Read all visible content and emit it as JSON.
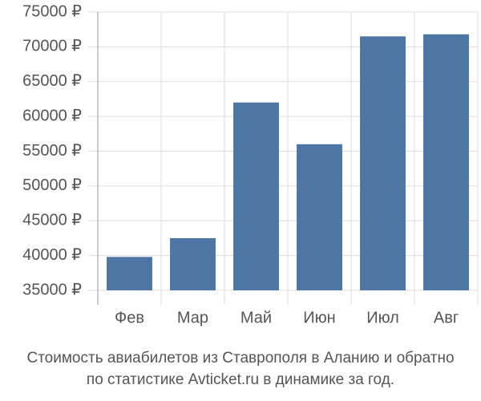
{
  "chart_data": {
    "type": "bar",
    "title": "Стоимость авиабилетов из Ставрополя в Аланию и обратно",
    "subtitle": "по статистике Avticket.ru в динамике за год.",
    "categories": [
      "Фев",
      "Мар",
      "Май",
      "Июн",
      "Июл",
      "Авг"
    ],
    "values": [
      39800,
      42500,
      62000,
      56000,
      71500,
      71800
    ],
    "color": "#4d76a5",
    "ylim": [
      35000,
      75000
    ],
    "yticks": [
      {
        "value": 35000,
        "label": "35000 ₽"
      },
      {
        "value": 40000,
        "label": "40000 ₽"
      },
      {
        "value": 45000,
        "label": "45000 ₽"
      },
      {
        "value": 50000,
        "label": "50000 ₽"
      },
      {
        "value": 55000,
        "label": "55000 ₽"
      },
      {
        "value": 60000,
        "label": "60000 ₽"
      },
      {
        "value": 65000,
        "label": "65000 ₽"
      },
      {
        "value": 70000,
        "label": "70000 ₽"
      },
      {
        "value": 75000,
        "label": "75000 ₽"
      }
    ],
    "grid": true
  }
}
